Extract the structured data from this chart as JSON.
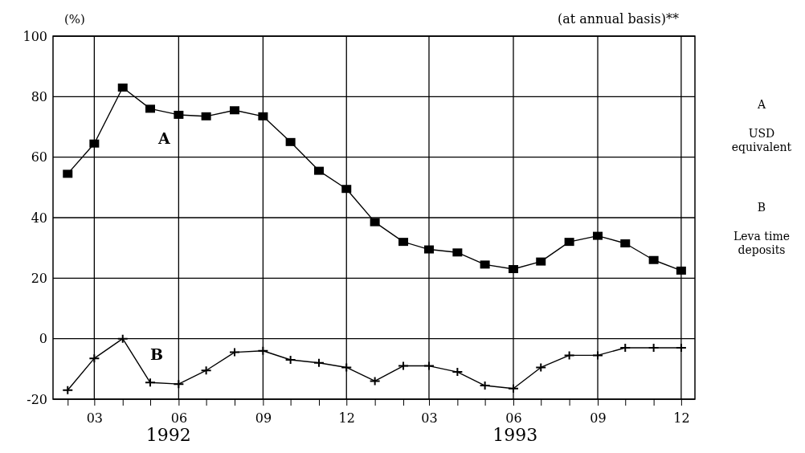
{
  "chart_data": {
    "type": "line",
    "title": "(at annual basis)**",
    "ylabel": "(%)",
    "x": [
      "1992-02",
      "1992-03",
      "1992-04",
      "1992-05",
      "1992-06",
      "1992-07",
      "1992-08",
      "1992-09",
      "1992-10",
      "1992-11",
      "1992-12",
      "1993-01",
      "1993-02",
      "1993-03",
      "1993-04",
      "1993-05",
      "1993-06",
      "1993-07",
      "1993-08",
      "1993-09",
      "1993-10",
      "1993-11",
      "1993-12"
    ],
    "series": [
      {
        "name": "A",
        "color": "#000000",
        "marker": "square",
        "values": [
          54.5,
          64.5,
          83,
          76,
          74,
          73.5,
          75.5,
          73.5,
          65,
          55.5,
          49.5,
          38.5,
          32,
          29.5,
          28.5,
          24.5,
          23,
          25.5,
          32,
          34,
          31.5,
          26,
          22.5
        ]
      },
      {
        "name": "B",
        "color": "#000000",
        "marker": "cross",
        "values": [
          -17,
          -6.5,
          0,
          -14.5,
          -15,
          -10.5,
          -4.5,
          -4,
          -7,
          -8,
          -9.5,
          -14,
          -9,
          -9,
          -11,
          -15.5,
          -16.5,
          -9.5,
          -5.5,
          -5.5,
          -3,
          -3,
          -3
        ]
      }
    ],
    "xlim": [
      "1992-01-16",
      "1993-12-16"
    ],
    "xticks": [
      {
        "value": "1992-02",
        "label": null
      },
      {
        "value": "1992-03",
        "label": "03"
      },
      {
        "value": "1992-04",
        "label": null
      },
      {
        "value": "1992-05",
        "label": null
      },
      {
        "value": "1992-06",
        "label": "06"
      },
      {
        "value": "1992-07",
        "label": null
      },
      {
        "value": "1992-08",
        "label": null
      },
      {
        "value": "1992-09",
        "label": "09"
      },
      {
        "value": "1992-10",
        "label": null
      },
      {
        "value": "1992-11",
        "label": null
      },
      {
        "value": "1992-12",
        "label": "12"
      },
      {
        "value": "1993-01",
        "label": null
      },
      {
        "value": "1993-02",
        "label": null
      },
      {
        "value": "1993-03",
        "label": "03"
      },
      {
        "value": "1993-04",
        "label": null
      },
      {
        "value": "1993-05",
        "label": null
      },
      {
        "value": "1993-06",
        "label": "06"
      },
      {
        "value": "1993-07",
        "label": null
      },
      {
        "value": "1993-08",
        "label": null
      },
      {
        "value": "1993-09",
        "label": "09"
      },
      {
        "value": "1993-10",
        "label": null
      },
      {
        "value": "1993-11",
        "label": null
      },
      {
        "value": "1993-12",
        "label": "12"
      }
    ],
    "ylim": [
      -20,
      100
    ],
    "yticks": [
      -20,
      0,
      20,
      40,
      60,
      80,
      100
    ],
    "grid": true,
    "line_style": "solid",
    "annotations": [
      "1992",
      "1993",
      "A",
      "USD equivalent",
      "B",
      "Leva time deposits"
    ]
  }
}
